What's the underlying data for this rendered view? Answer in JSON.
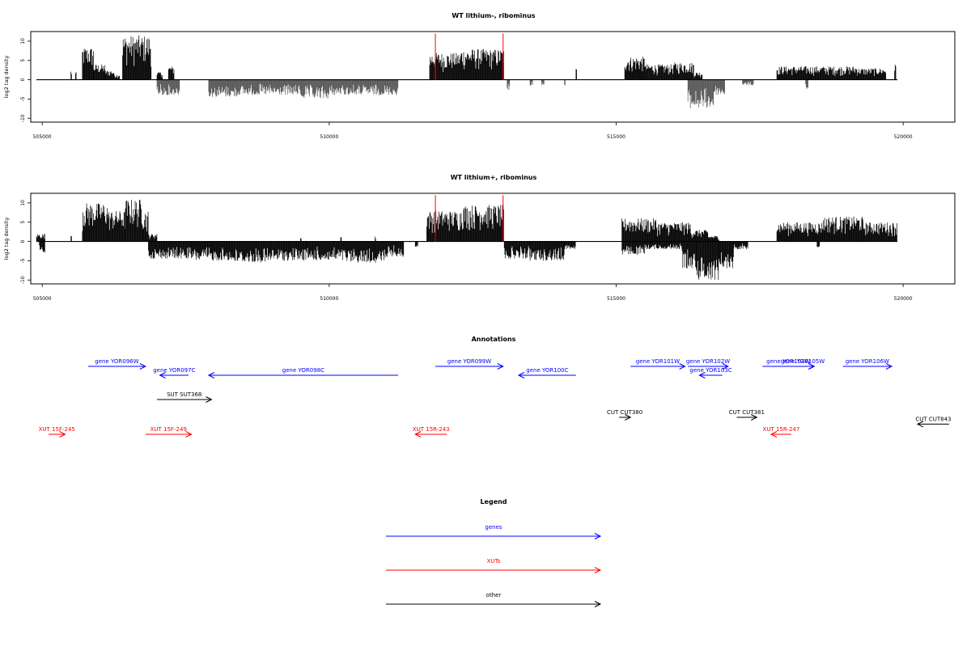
{
  "chart_data": [
    {
      "type": "bar",
      "title": "WT lithium-, ribominus",
      "ylabel": "log2 tag density",
      "xlabel": "",
      "xlim": [
        504800,
        520900
      ],
      "ylim": [
        -11,
        12.5
      ],
      "x_ticks": [
        505000,
        510000,
        515000,
        520000
      ],
      "x_tick_labels": [
        "505000",
        "510000",
        "515000",
        "520000"
      ],
      "y_ticks": [
        -10,
        -5,
        0,
        5,
        10
      ],
      "y_tick_labels": [
        "-10",
        "-5",
        "0",
        "5",
        "10"
      ],
      "baseline": [
        504900,
        519900
      ],
      "highlight_x": [
        511850,
        513030
      ],
      "highlight_top": 12,
      "series": [
        {
          "strand": "plus",
          "color": "#000000",
          "profile": [
            [
              505500,
              505520,
              2.5
            ],
            [
              505580,
              505600,
              2.0
            ],
            [
              505700,
              505900,
              8.5
            ],
            [
              505900,
              506100,
              4.0
            ],
            [
              506100,
              506250,
              2.5
            ],
            [
              506250,
              506350,
              1.5
            ],
            [
              506400,
              506900,
              11.5
            ],
            [
              507000,
              507100,
              2.0
            ],
            [
              507200,
              507300,
              3.5
            ],
            [
              511750,
              512300,
              7.0
            ],
            [
              512300,
              513050,
              8.0
            ],
            [
              514300,
              514320,
              3.0
            ],
            [
              515150,
              515500,
              6.0
            ],
            [
              515500,
              516000,
              4.0
            ],
            [
              516000,
              516350,
              4.5
            ],
            [
              516350,
              516500,
              2.0
            ],
            [
              517800,
              518400,
              3.5
            ],
            [
              518400,
              519200,
              3.5
            ],
            [
              519200,
              519700,
              3.0
            ],
            [
              519850,
              519880,
              4.0
            ]
          ]
        },
        {
          "strand": "minus",
          "color": "#555555",
          "profile": [
            [
              507000,
              507400,
              -4.0
            ],
            [
              507900,
              508400,
              -4.5
            ],
            [
              508400,
              509000,
              -4.0
            ],
            [
              509000,
              509500,
              -4.0
            ],
            [
              509500,
              510000,
              -5.0
            ],
            [
              510000,
              510500,
              -4.0
            ],
            [
              510500,
              511200,
              -4.0
            ],
            [
              513100,
              513150,
              -3.0
            ],
            [
              513500,
              513550,
              -1.5
            ],
            [
              513700,
              513750,
              -1.5
            ],
            [
              514100,
              514120,
              -2.0
            ],
            [
              516250,
              516700,
              -7.5
            ],
            [
              516700,
              516900,
              -4.0
            ],
            [
              517200,
              517400,
              -1.5
            ],
            [
              518300,
              518350,
              -2.5
            ]
          ]
        }
      ]
    },
    {
      "type": "bar",
      "title": "WT lithium+, ribominus",
      "ylabel": "log2 tag density",
      "xlabel": "",
      "xlim": [
        504800,
        520900
      ],
      "ylim": [
        -11,
        12.5
      ],
      "x_ticks": [
        505000,
        510000,
        515000,
        520000
      ],
      "x_tick_labels": [
        "505000",
        "510000",
        "515000",
        "520000"
      ],
      "y_ticks": [
        -10,
        -5,
        0,
        5,
        10
      ],
      "y_tick_labels": [
        "-10",
        "-5",
        "0",
        "5",
        "10"
      ],
      "baseline": [
        504900,
        519900
      ],
      "highlight_x": [
        511850,
        513030
      ],
      "highlight_top": 12,
      "series": [
        {
          "strand": "plus",
          "color": "#000000",
          "profile": [
            [
              504900,
              505050,
              2.0
            ],
            [
              505500,
              505520,
              2.0
            ],
            [
              505700,
              506150,
              10.0
            ],
            [
              506150,
              506450,
              8.0
            ],
            [
              506450,
              506750,
              11.0
            ],
            [
              506750,
              506850,
              8.0
            ],
            [
              506850,
              507000,
              2.0
            ],
            [
              509500,
              509520,
              1.5
            ],
            [
              510200,
              510220,
              1.5
            ],
            [
              510800,
              510820,
              1.5
            ],
            [
              511700,
              512300,
              8.0
            ],
            [
              512300,
              513050,
              9.5
            ],
            [
              515100,
              515700,
              6.0
            ],
            [
              515700,
              516300,
              5.0
            ],
            [
              516300,
              516600,
              3.0
            ],
            [
              516600,
              516800,
              1.5
            ],
            [
              517800,
              518600,
              5.0
            ],
            [
              518600,
              519300,
              6.5
            ],
            [
              519300,
              519900,
              5.0
            ]
          ]
        },
        {
          "strand": "minus",
          "color": "#000000",
          "profile": [
            [
              504950,
              505050,
              -3.0
            ],
            [
              506850,
              507600,
              -4.5
            ],
            [
              507600,
              508300,
              -5.0
            ],
            [
              508300,
              509000,
              -5.5
            ],
            [
              509000,
              509600,
              -5.0
            ],
            [
              509600,
              510300,
              -5.0
            ],
            [
              510300,
              511000,
              -5.5
            ],
            [
              511000,
              511300,
              -4.0
            ],
            [
              511500,
              511550,
              -1.5
            ],
            [
              513050,
              513500,
              -4.5
            ],
            [
              513500,
              514100,
              -5.0
            ],
            [
              514100,
              514300,
              -2.0
            ],
            [
              515100,
              515500,
              -3.5
            ],
            [
              515500,
              516150,
              -2.0
            ],
            [
              516150,
              516400,
              -7.0
            ],
            [
              516400,
              516800,
              -10.0
            ],
            [
              516800,
              517050,
              -7.0
            ],
            [
              517050,
              517300,
              -2.0
            ],
            [
              518500,
              518550,
              -1.5
            ]
          ]
        }
      ]
    }
  ],
  "annotations": {
    "title": "Annotations",
    "xlim": [
      504800,
      520900
    ],
    "items": [
      {
        "label": "gene YOR096W",
        "start": 505800,
        "end": 506800,
        "dir": "right",
        "row": 0,
        "color": "#0000ff"
      },
      {
        "label": "gene YOR097C",
        "start": 507050,
        "end": 507550,
        "dir": "left",
        "row": 1,
        "color": "#0000ff"
      },
      {
        "label": "gene YOR098C",
        "start": 507900,
        "end": 511200,
        "dir": "left",
        "row": 1,
        "color": "#0000ff"
      },
      {
        "label": "gene YOR099W",
        "start": 511850,
        "end": 513030,
        "dir": "right",
        "row": 0,
        "color": "#0000ff"
      },
      {
        "label": "gene YOR100C",
        "start": 513300,
        "end": 514300,
        "dir": "left",
        "row": 1,
        "color": "#0000ff"
      },
      {
        "label": "gene YOR101W",
        "start": 515250,
        "end": 516200,
        "dir": "right",
        "row": 0,
        "color": "#0000ff"
      },
      {
        "label": "gene YOR102W",
        "start": 516250,
        "end": 516950,
        "dir": "right",
        "row": 0,
        "color": "#0000ff"
      },
      {
        "label": "gene YOR103C",
        "start": 516450,
        "end": 516850,
        "dir": "left",
        "row": 1,
        "color": "#0000ff"
      },
      {
        "label": "gene YOR104W",
        "start": 517550,
        "end": 518450,
        "dir": "right",
        "row": 0,
        "color": "#0000ff"
      },
      {
        "label": "gene YOR105W",
        "start": 518050,
        "end": 518450,
        "dir": "right",
        "row": 0,
        "color": "#0000ff"
      },
      {
        "label": "gene YOR106W",
        "start": 518950,
        "end": 519800,
        "dir": "right",
        "row": 0,
        "color": "#0000ff"
      },
      {
        "label": "SUT SUT368",
        "start": 507000,
        "end": 507950,
        "dir": "right",
        "row": 2,
        "color": "#000000"
      },
      {
        "label": "CUT CUT380",
        "start": 515050,
        "end": 515250,
        "dir": "right",
        "row": 3,
        "color": "#000000"
      },
      {
        "label": "CUT CUT381",
        "start": 517100,
        "end": 517450,
        "dir": "right",
        "row": 3,
        "color": "#000000"
      },
      {
        "label": "CUT CUT843",
        "start": 520250,
        "end": 520800,
        "dir": "left",
        "row": 3.4,
        "color": "#000000"
      },
      {
        "label": "XUT 15F-245",
        "start": 504600,
        "end": 505400,
        "dir": "right",
        "row": 4,
        "color": "#ff0000"
      },
      {
        "label": "XUT 15F-249",
        "start": 506800,
        "end": 507600,
        "dir": "right",
        "row": 4,
        "color": "#ff0000"
      },
      {
        "label": "XUT 15R-243",
        "start": 511500,
        "end": 512050,
        "dir": "left",
        "row": 4.4,
        "color": "#ff0000"
      },
      {
        "label": "XUT 15R-247",
        "start": 517700,
        "end": 518050,
        "dir": "left",
        "row": 4.4,
        "color": "#ff0000"
      }
    ]
  },
  "legend": {
    "title": "Legend",
    "items": [
      {
        "label": "genes",
        "color": "#0000ff"
      },
      {
        "label": "XUTs",
        "color": "#ff0000"
      },
      {
        "label": "other",
        "color": "#000000"
      }
    ]
  },
  "colors": {
    "highlight": "#ff0000",
    "frame": "#000000"
  }
}
